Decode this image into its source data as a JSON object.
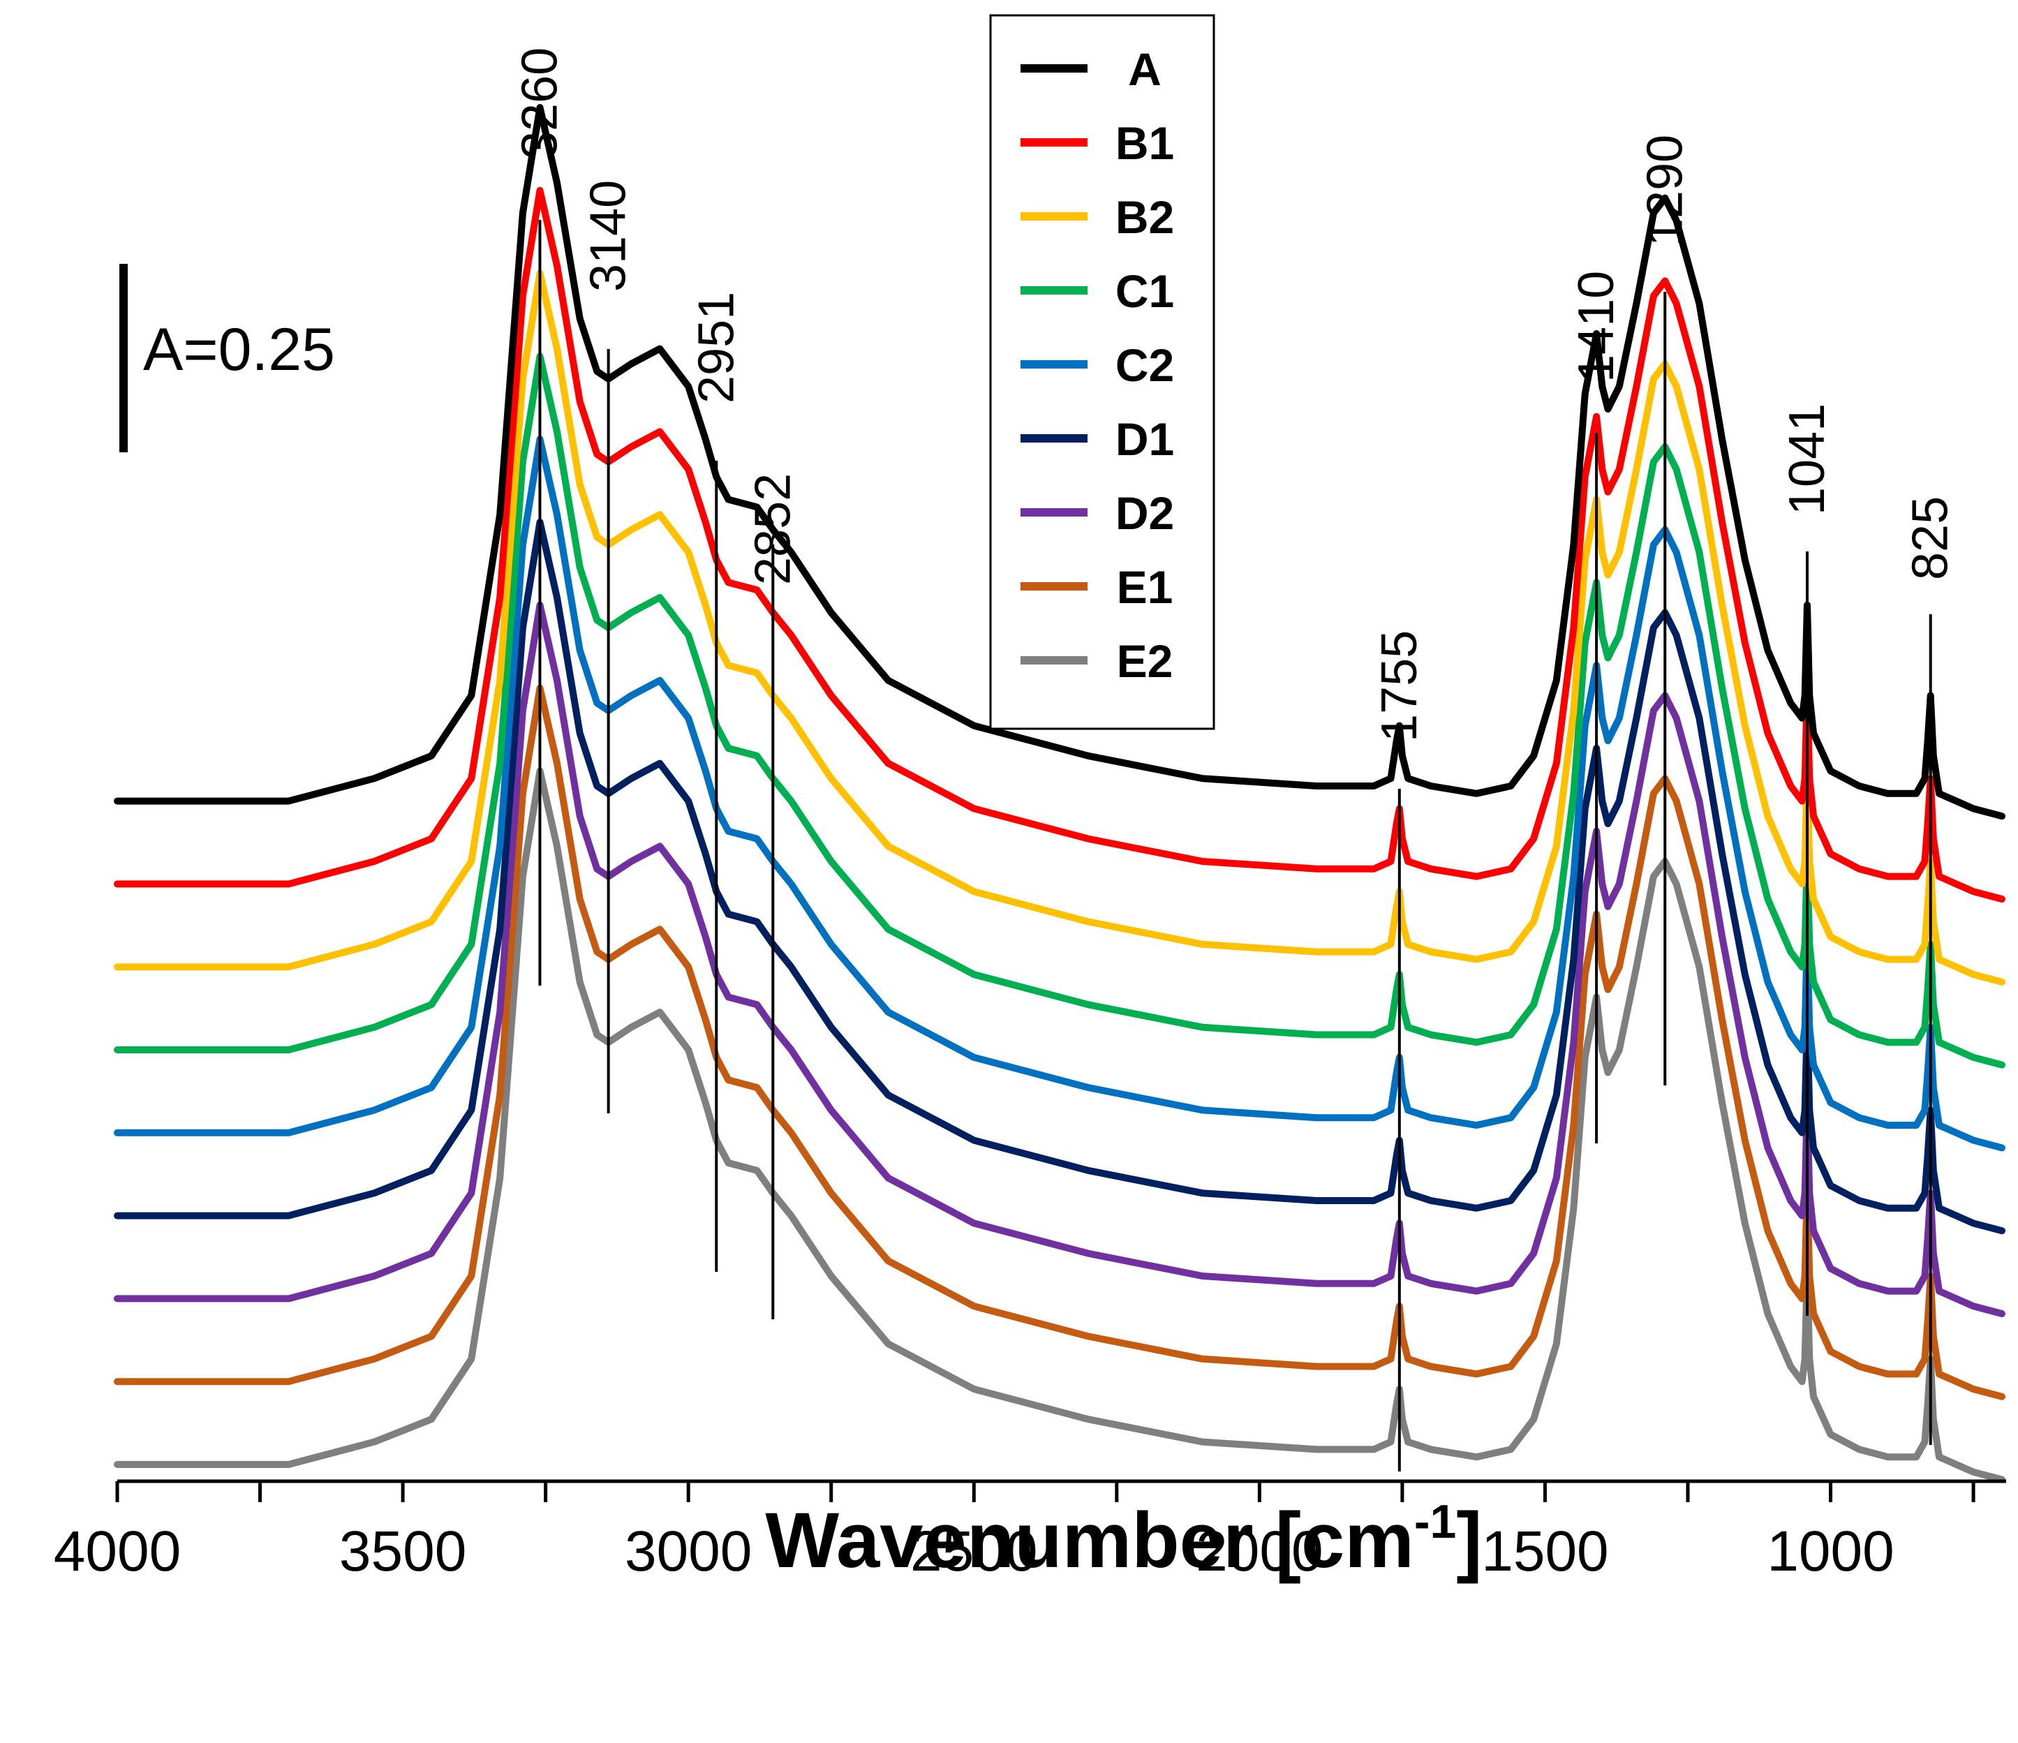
{
  "chart_data": {
    "type": "line",
    "title": "",
    "xlabel_main": "Wavenumber [cm",
    "xlabel_sup": "-1",
    "xlabel_close": "]",
    "ylabel": "",
    "xlim": [
      4000,
      700
    ],
    "x_reversed": true,
    "x_ticks": [
      {
        "value": 4000,
        "label": "4000"
      },
      {
        "value": 3500,
        "label": "3500"
      },
      {
        "value": 3000,
        "label": "3000"
      },
      {
        "value": 2500,
        "label": "2500"
      },
      {
        "value": 2000,
        "label": "2000"
      },
      {
        "value": 1500,
        "label": "1500"
      },
      {
        "value": 1000,
        "label": "1000"
      }
    ],
    "scale_bar_label": "A=0.25",
    "scale_bar_value": 0.25,
    "peak_annotations": [
      {
        "label": "3260",
        "x": 3260
      },
      {
        "label": "3140",
        "x": 3140
      },
      {
        "label": "2951",
        "x": 2951
      },
      {
        "label": "2852",
        "x": 2852
      },
      {
        "label": "1755",
        "x": 1755
      },
      {
        "label": "1410",
        "x": 1410
      },
      {
        "label": "1290",
        "x": 1290
      },
      {
        "label": "1041",
        "x": 1041
      },
      {
        "label": "825",
        "x": 825
      }
    ],
    "legend_position": "top-center",
    "series": [
      {
        "name": "A",
        "color": "#000000",
        "offset": 0.88
      },
      {
        "name": "B1",
        "color": "#ff0000",
        "offset": 0.77
      },
      {
        "name": "B2",
        "color": "#ffc000",
        "offset": 0.66
      },
      {
        "name": "C1",
        "color": "#00b050",
        "offset": 0.55
      },
      {
        "name": "C2",
        "color": "#0070c0",
        "offset": 0.44
      },
      {
        "name": "D1",
        "color": "#002060",
        "offset": 0.33
      },
      {
        "name": "D2",
        "color": "#7030a0",
        "offset": 0.22
      },
      {
        "name": "E1",
        "color": "#c55a11",
        "offset": 0.11
      },
      {
        "name": "E2",
        "color": "#7f7f7f",
        "offset": 0.0
      }
    ],
    "profile": {
      "x": [
        4000,
        3700,
        3550,
        3450,
        3380,
        3330,
        3290,
        3260,
        3230,
        3190,
        3160,
        3140,
        3100,
        3050,
        3000,
        2970,
        2951,
        2930,
        2880,
        2852,
        2820,
        2750,
        2650,
        2500,
        2300,
        2100,
        1900,
        1800,
        1770,
        1760,
        1755,
        1750,
        1740,
        1700,
        1620,
        1560,
        1520,
        1480,
        1450,
        1430,
        1420,
        1410,
        1400,
        1390,
        1370,
        1340,
        1310,
        1290,
        1270,
        1230,
        1190,
        1150,
        1110,
        1070,
        1050,
        1045,
        1041,
        1037,
        1030,
        1000,
        950,
        900,
        850,
        835,
        830,
        825,
        820,
        810,
        780,
        750,
        700
      ],
      "y": [
        0.0,
        0.0,
        0.03,
        0.06,
        0.14,
        0.38,
        0.78,
        0.92,
        0.82,
        0.64,
        0.57,
        0.56,
        0.58,
        0.6,
        0.55,
        0.48,
        0.43,
        0.4,
        0.39,
        0.36,
        0.33,
        0.25,
        0.16,
        0.1,
        0.06,
        0.03,
        0.02,
        0.02,
        0.03,
        0.08,
        0.1,
        0.06,
        0.03,
        0.02,
        0.01,
        0.02,
        0.06,
        0.16,
        0.34,
        0.54,
        0.58,
        0.62,
        0.55,
        0.52,
        0.55,
        0.66,
        0.78,
        0.8,
        0.77,
        0.66,
        0.48,
        0.32,
        0.2,
        0.13,
        0.11,
        0.14,
        0.26,
        0.14,
        0.09,
        0.04,
        0.02,
        0.01,
        0.01,
        0.03,
        0.08,
        0.14,
        0.06,
        0.01,
        0.0,
        -0.01,
        -0.02
      ]
    }
  }
}
